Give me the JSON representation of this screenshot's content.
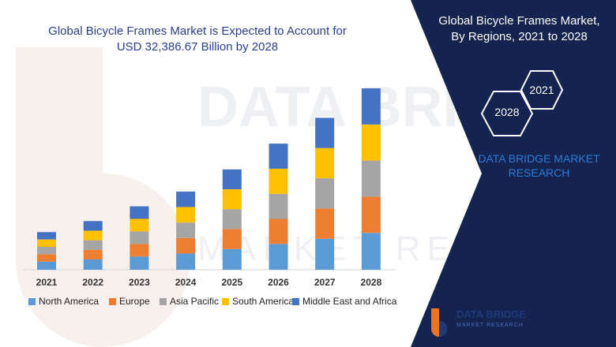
{
  "header": {
    "title_line1": "Global Bicycle Frames Market is Expected to Account for",
    "title_line2": "USD 32,386.67 Billion by 2028"
  },
  "side": {
    "title_line1": "Global Bicycle Frames Market,",
    "title_line2": "By Regions,  2021 to 2028",
    "hex_top": "2021",
    "hex_bottom": "2028",
    "brand_line1": "DATA BRIDGE MARKET",
    "brand_line2": "RESEARCH"
  },
  "logo": {
    "name": "DATA BRIDGE",
    "sub": "MARKET RESEARCH"
  },
  "colors": {
    "panel": "#14234f",
    "title": "#2a3f8a",
    "brand": "#2e7bd6"
  },
  "chart_data": {
    "type": "bar",
    "stacked": true,
    "categories": [
      "2021",
      "2022",
      "2023",
      "2024",
      "2025",
      "2026",
      "2027",
      "2028"
    ],
    "series": [
      {
        "name": "North America",
        "color": "#5b9bd5",
        "values": [
          11,
          14,
          18,
          22,
          28,
          35,
          42,
          50
        ]
      },
      {
        "name": "Europe",
        "color": "#ed7d31",
        "values": [
          10,
          13,
          17,
          21,
          27,
          34,
          41,
          49
        ]
      },
      {
        "name": "Asia Pacific",
        "color": "#a5a5a5",
        "values": [
          10,
          13,
          17,
          21,
          27,
          34,
          41,
          49
        ]
      },
      {
        "name": "South America",
        "color": "#ffc000",
        "values": [
          10,
          13,
          17,
          21,
          27,
          34,
          41,
          49
        ]
      },
      {
        "name": "Middle East and Africa",
        "color": "#4472c4",
        "values": [
          10,
          13,
          17,
          21,
          27,
          34,
          41,
          49
        ]
      }
    ],
    "grid": false,
    "legend_position": "bottom"
  }
}
